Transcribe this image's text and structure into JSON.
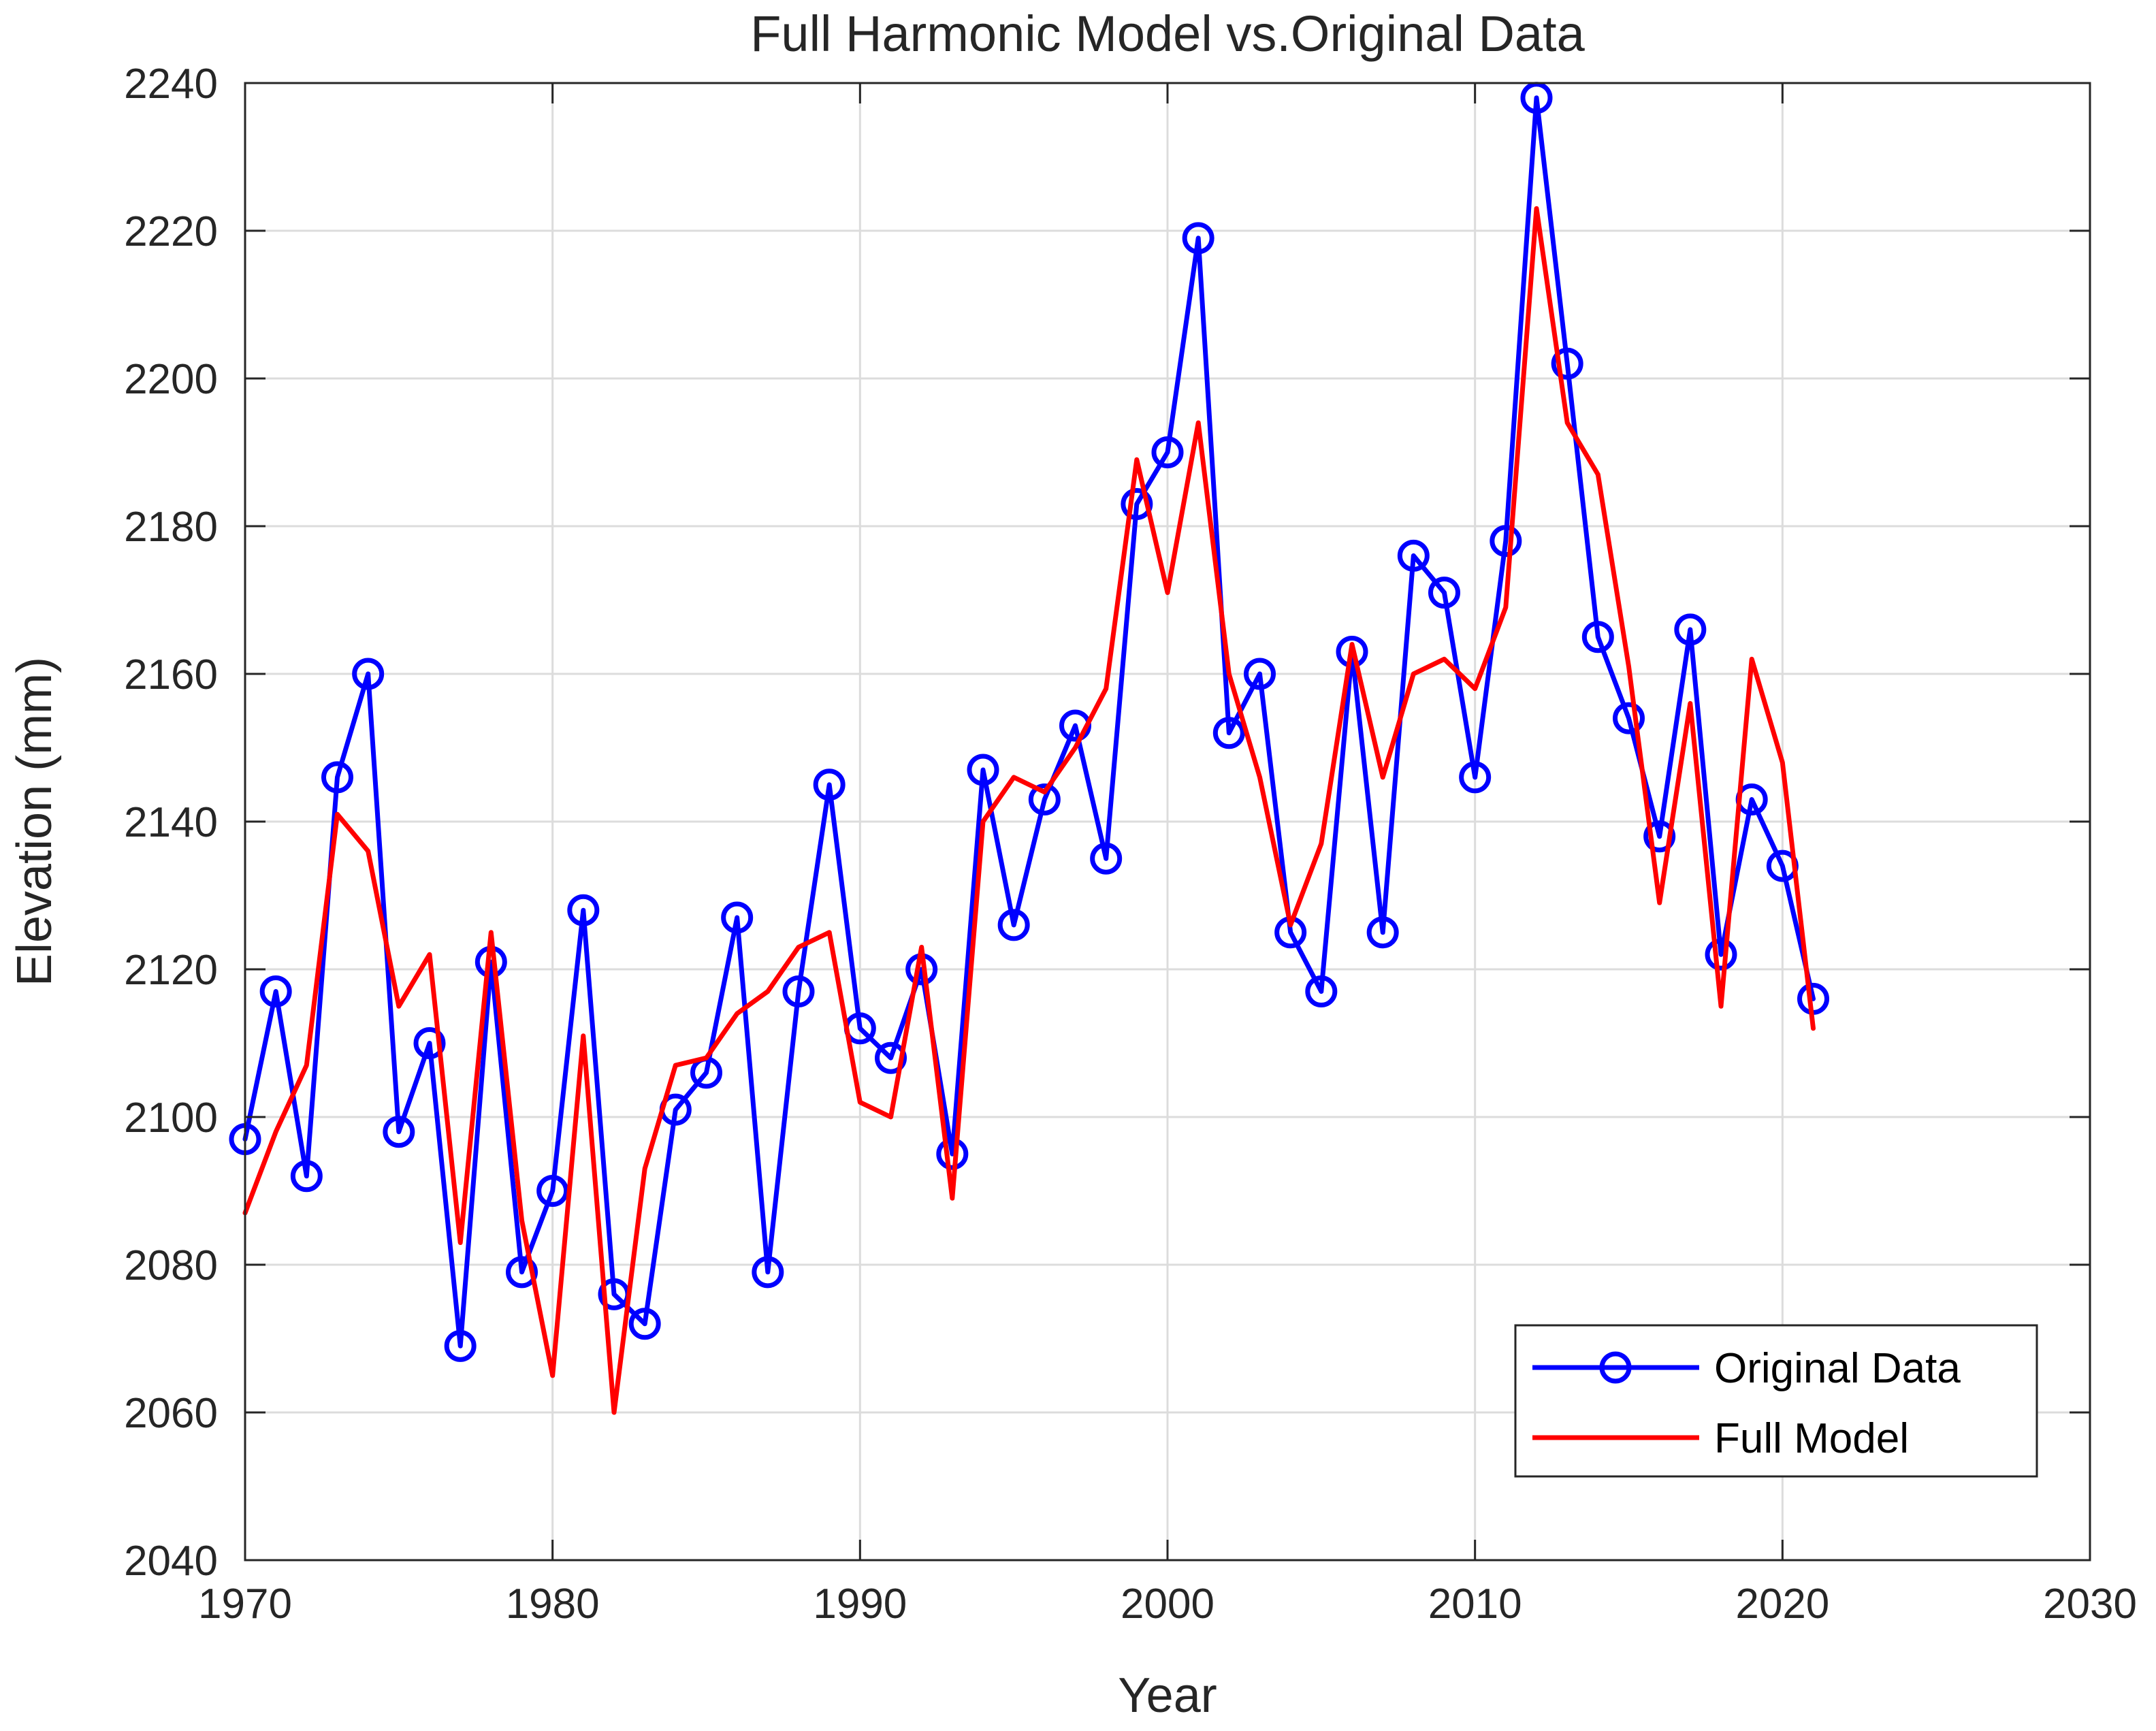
{
  "chart_data": {
    "type": "line",
    "title": "Full Harmonic Model vs.Original Data",
    "xlabel": "Year",
    "ylabel": "Elevation (mm)",
    "xlim": [
      1970,
      2030
    ],
    "ylim": [
      2040,
      2240
    ],
    "xticks": [
      1970,
      1980,
      1990,
      2000,
      2010,
      2020,
      2030
    ],
    "yticks": [
      2040,
      2060,
      2080,
      2100,
      2120,
      2140,
      2160,
      2180,
      2200,
      2220,
      2240
    ],
    "grid": true,
    "legend_position": "bottom-right",
    "x": [
      1970,
      1971,
      1972,
      1973,
      1974,
      1975,
      1976,
      1977,
      1978,
      1979,
      1980,
      1981,
      1982,
      1983,
      1984,
      1985,
      1986,
      1987,
      1988,
      1989,
      1990,
      1991,
      1992,
      1993,
      1994,
      1995,
      1996,
      1997,
      1998,
      1999,
      2000,
      2001,
      2002,
      2003,
      2004,
      2005,
      2006,
      2007,
      2008,
      2009,
      2010,
      2011,
      2012,
      2013,
      2014,
      2015,
      2016,
      2017,
      2018,
      2019,
      2020,
      2021
    ],
    "series": [
      {
        "name": "Original Data",
        "color": "#0000ff",
        "marker": "circle",
        "values": [
          2097,
          2117,
          2092,
          2146,
          2160,
          2098,
          2110,
          2069,
          2121,
          2079,
          2090,
          2128,
          2076,
          2072,
          2101,
          2106,
          2127,
          2079,
          2117,
          2145,
          2112,
          2108,
          2120,
          2095,
          2147,
          2126,
          2143,
          2153,
          2135,
          2183,
          2190,
          2219,
          2152,
          2160,
          2125,
          2117,
          2163,
          2125,
          2176,
          2171,
          2146,
          2178,
          2238,
          2202,
          2165,
          2154,
          2138,
          2166,
          2122,
          2143,
          2134,
          2116
        ]
      },
      {
        "name": "Full Model",
        "color": "#ff0000",
        "marker": "none",
        "values": [
          2087,
          2098,
          2107,
          2141,
          2136,
          2115,
          2122,
          2083,
          2125,
          2086,
          2065,
          2111,
          2060,
          2093,
          2107,
          2108,
          2114,
          2117,
          2123,
          2125,
          2102,
          2100,
          2123,
          2089,
          2140,
          2146,
          2144,
          2150,
          2158,
          2189,
          2171,
          2194,
          2160,
          2146,
          2126,
          2137,
          2164,
          2146,
          2160,
          2162,
          2158,
          2169,
          2223,
          2194,
          2187,
          2161,
          2129,
          2156,
          2115,
          2162,
          2148,
          2112
        ]
      }
    ]
  }
}
